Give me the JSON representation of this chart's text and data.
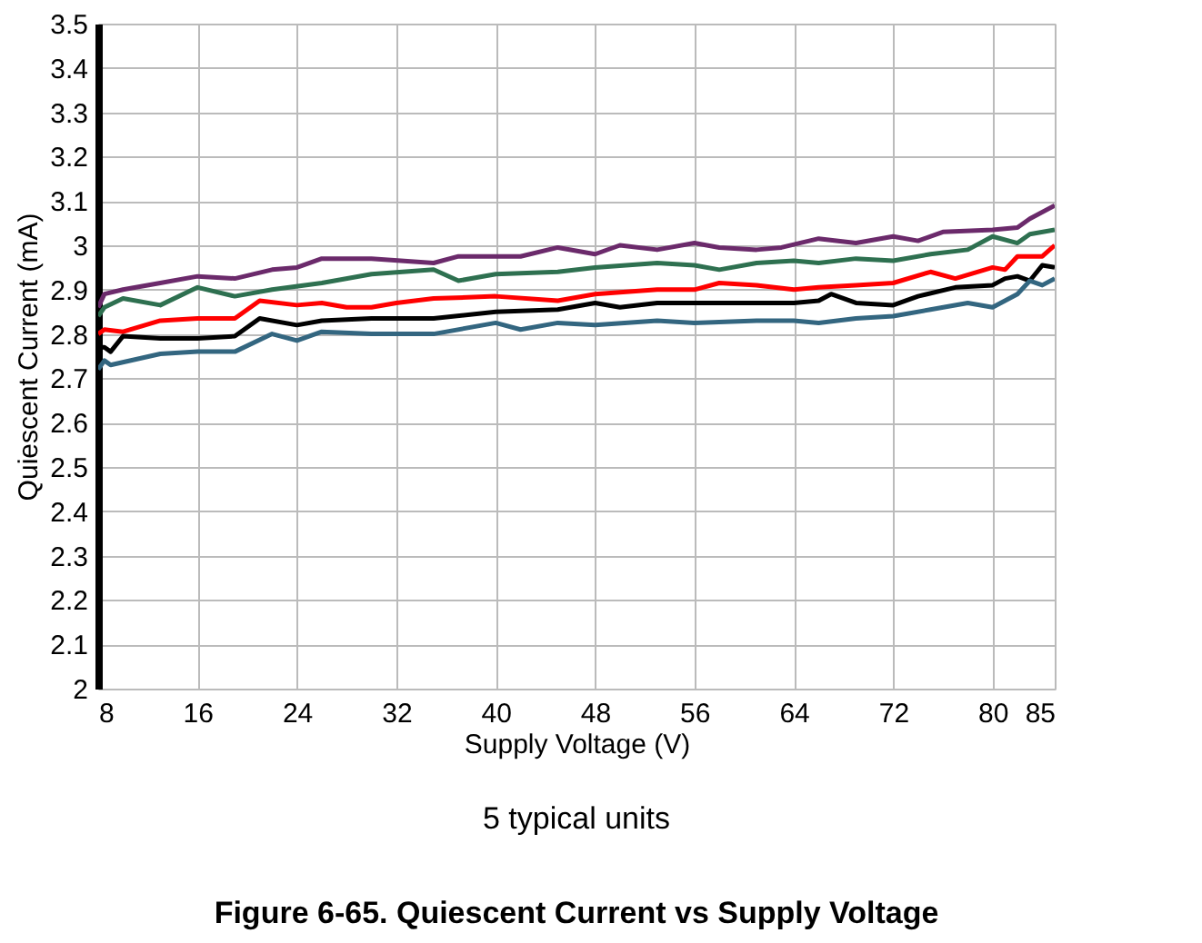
{
  "chart_data": {
    "type": "line",
    "title": "Figure 6-65. Quiescent Current vs Supply Voltage",
    "xlabel": "Supply Voltage (V)",
    "ylabel": "Quiescent Current (mA)",
    "annotations": [
      "5 typical units"
    ],
    "xlim": [
      8,
      85
    ],
    "xticks": [
      8,
      16,
      24,
      32,
      40,
      48,
      56,
      64,
      72,
      80,
      85
    ],
    "ylim": [
      2,
      3.5
    ],
    "yticks": [
      2,
      2.1,
      2.2,
      2.3,
      2.4,
      2.5,
      2.6,
      2.7,
      2.8,
      2.9,
      3,
      3.1,
      3.2,
      3.3,
      3.4,
      3.5
    ],
    "grid": true,
    "legend": false,
    "line_style": "solid",
    "marker": "none",
    "series": [
      {
        "color": "#6b2a6b",
        "x": [
          8,
          8.5,
          10,
          13,
          16,
          19,
          22,
          24,
          26,
          30,
          35,
          37,
          42,
          45,
          48,
          50,
          53,
          56,
          58,
          61,
          63,
          66,
          69,
          72,
          74,
          76,
          80,
          82,
          83,
          85
        ],
        "values": [
          2.86,
          2.89,
          2.9,
          2.915,
          2.93,
          2.925,
          2.945,
          2.95,
          2.97,
          2.97,
          2.96,
          2.975,
          2.975,
          2.995,
          2.98,
          3.0,
          2.99,
          3.005,
          2.995,
          2.99,
          2.995,
          3.015,
          3.005,
          3.02,
          3.01,
          3.03,
          3.035,
          3.04,
          3.06,
          3.09
        ]
      },
      {
        "color": "#2e7050",
        "x": [
          8,
          8.5,
          10,
          13,
          16,
          19,
          22,
          26,
          30,
          35,
          37,
          40,
          45,
          48,
          53,
          56,
          58,
          61,
          64,
          66,
          69,
          72,
          75,
          78,
          80,
          82,
          83,
          85
        ],
        "values": [
          2.84,
          2.86,
          2.88,
          2.865,
          2.905,
          2.885,
          2.9,
          2.915,
          2.935,
          2.945,
          2.92,
          2.935,
          2.94,
          2.95,
          2.96,
          2.955,
          2.945,
          2.96,
          2.965,
          2.96,
          2.97,
          2.965,
          2.98,
          2.99,
          3.02,
          3.005,
          3.025,
          3.035
        ]
      },
      {
        "color": "#ff0000",
        "x": [
          8,
          8.5,
          10,
          13,
          16,
          19,
          21,
          24,
          26,
          28,
          30,
          32,
          35,
          40,
          45,
          48,
          53,
          56,
          58,
          61,
          64,
          66,
          69,
          72,
          75,
          77,
          80,
          81,
          82,
          84,
          85
        ],
        "values": [
          2.8,
          2.81,
          2.805,
          2.83,
          2.835,
          2.835,
          2.875,
          2.865,
          2.87,
          2.86,
          2.86,
          2.87,
          2.88,
          2.885,
          2.875,
          2.89,
          2.9,
          2.9,
          2.915,
          2.91,
          2.9,
          2.905,
          2.91,
          2.915,
          2.94,
          2.925,
          2.95,
          2.945,
          2.975,
          2.975,
          3.0
        ]
      },
      {
        "color": "#000000",
        "x": [
          8,
          8.5,
          9,
          10,
          13,
          16,
          19,
          21,
          24,
          26,
          30,
          35,
          40,
          45,
          48,
          50,
          53,
          56,
          58,
          61,
          64,
          66,
          67,
          69,
          72,
          74,
          77,
          80,
          81,
          82,
          83,
          84,
          85
        ],
        "values": [
          2.77,
          2.77,
          2.76,
          2.795,
          2.79,
          2.79,
          2.795,
          2.835,
          2.82,
          2.83,
          2.835,
          2.835,
          2.85,
          2.855,
          2.87,
          2.86,
          2.87,
          2.87,
          2.87,
          2.87,
          2.87,
          2.875,
          2.89,
          2.87,
          2.865,
          2.885,
          2.905,
          2.91,
          2.925,
          2.93,
          2.92,
          2.955,
          2.95
        ]
      },
      {
        "color": "#336680",
        "x": [
          8,
          8.5,
          9,
          13,
          16,
          19,
          22,
          24,
          26,
          30,
          35,
          40,
          42,
          45,
          48,
          53,
          56,
          61,
          64,
          66,
          69,
          72,
          75,
          78,
          80,
          81,
          82,
          83,
          84,
          85
        ],
        "values": [
          2.72,
          2.74,
          2.73,
          2.755,
          2.76,
          2.76,
          2.8,
          2.785,
          2.805,
          2.8,
          2.8,
          2.825,
          2.81,
          2.825,
          2.82,
          2.83,
          2.825,
          2.83,
          2.83,
          2.825,
          2.835,
          2.84,
          2.855,
          2.87,
          2.86,
          2.875,
          2.89,
          2.92,
          2.91,
          2.925
        ]
      }
    ]
  }
}
